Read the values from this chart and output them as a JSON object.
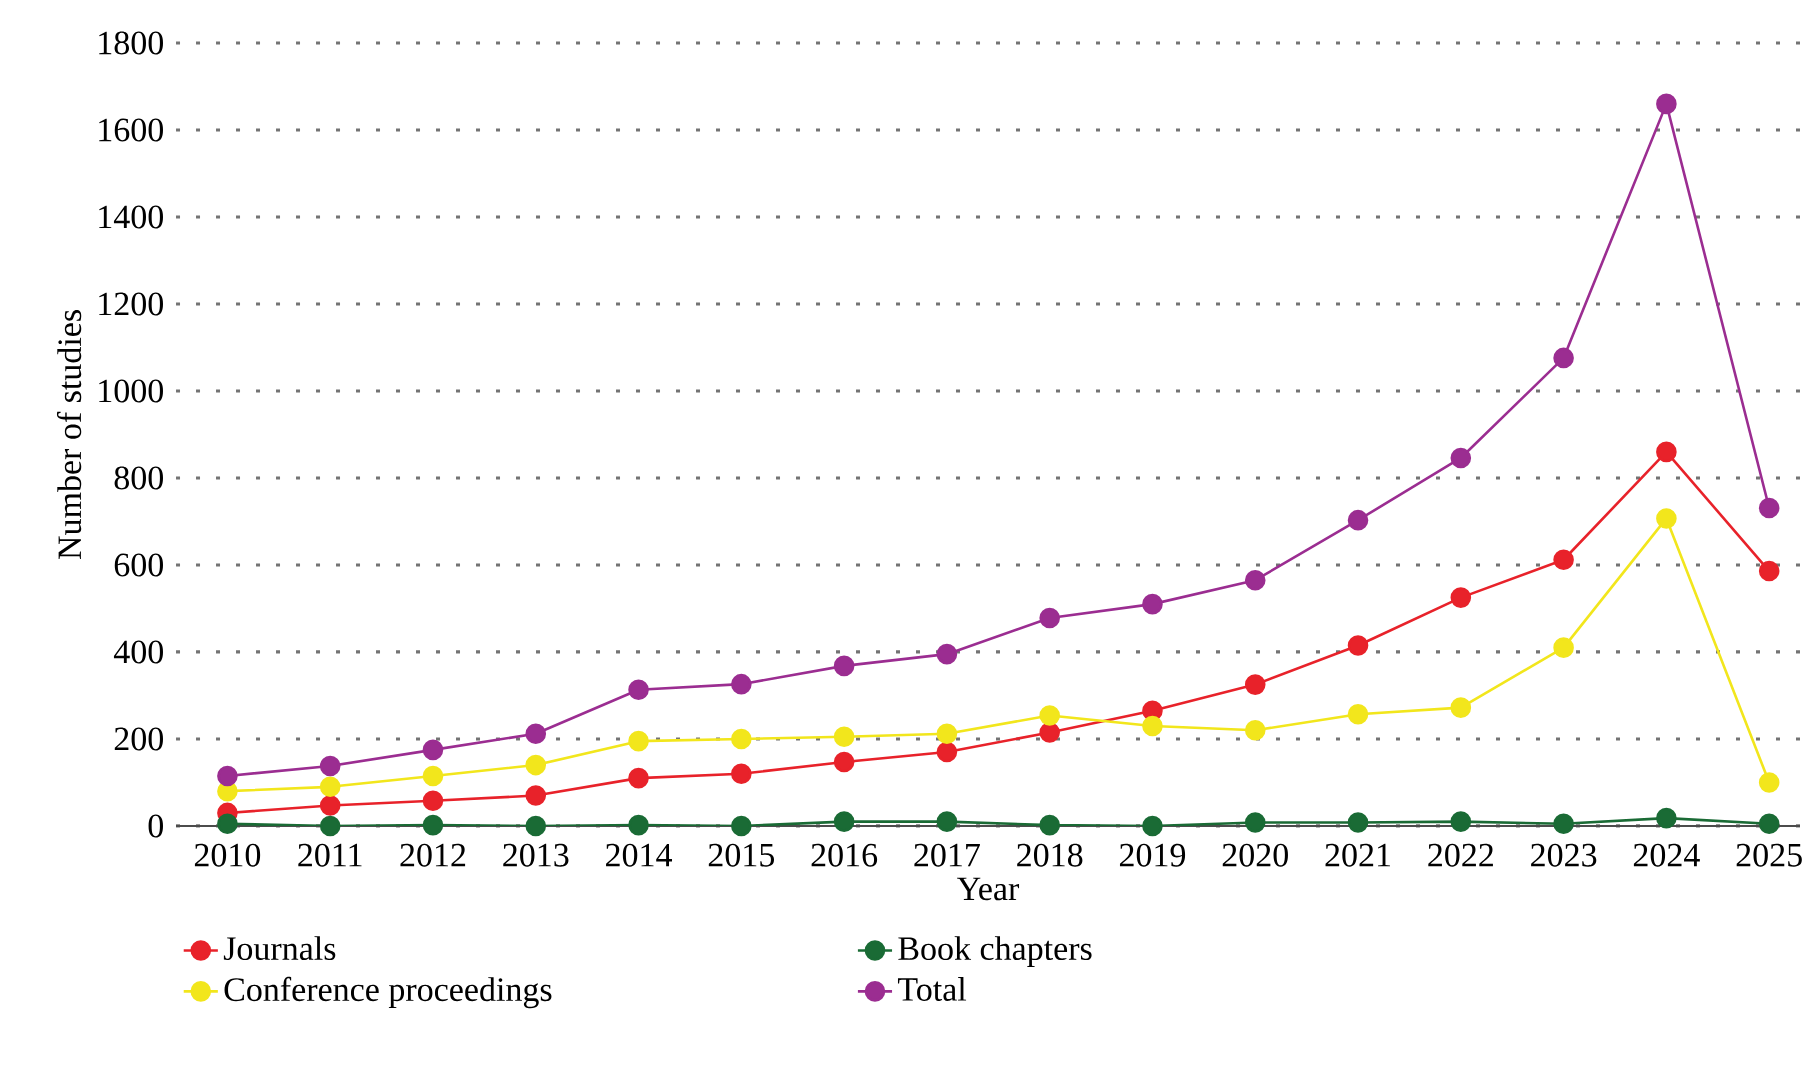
{
  "chart_data": {
    "type": "line",
    "xlabel": "Year",
    "ylabel": "Number of studies",
    "x": [
      2010,
      2011,
      2012,
      2013,
      2014,
      2015,
      2016,
      2017,
      2018,
      2019,
      2020,
      2021,
      2022,
      2023,
      2024,
      2025
    ],
    "series": [
      {
        "name": "Journals",
        "color": "#e8222a",
        "values": [
          30,
          47,
          58,
          70,
          110,
          120,
          147,
          170,
          215,
          265,
          325,
          415,
          525,
          612,
          860,
          586
        ]
      },
      {
        "name": "Book chapters",
        "color": "#1a6b35",
        "values": [
          5,
          0,
          2,
          0,
          2,
          0,
          10,
          10,
          2,
          0,
          8,
          8,
          10,
          5,
          18,
          5
        ]
      },
      {
        "name": "Conference proceedings",
        "color": "#f2e61c",
        "values": [
          80,
          90,
          115,
          140,
          195,
          200,
          205,
          212,
          254,
          230,
          220,
          257,
          272,
          410,
          707,
          100
        ]
      },
      {
        "name": "Total",
        "color": "#9b2d91",
        "values": [
          115,
          138,
          175,
          212,
          313,
          326,
          368,
          395,
          478,
          510,
          565,
          703,
          846,
          1076,
          1660,
          731
        ]
      }
    ],
    "xlim": [
      2009.5,
      2025.3
    ],
    "xticks": [
      2010,
      2011,
      2012,
      2013,
      2014,
      2015,
      2016,
      2017,
      2018,
      2019,
      2020,
      2021,
      2022,
      2023,
      2024,
      2025
    ],
    "ylim": [
      0,
      1800
    ],
    "yticks": [
      0,
      200,
      400,
      600,
      800,
      1000,
      1200,
      1400,
      1600,
      1800
    ],
    "grid": "y",
    "legend": "bottom",
    "marker": "circle",
    "line_style": "solid"
  }
}
